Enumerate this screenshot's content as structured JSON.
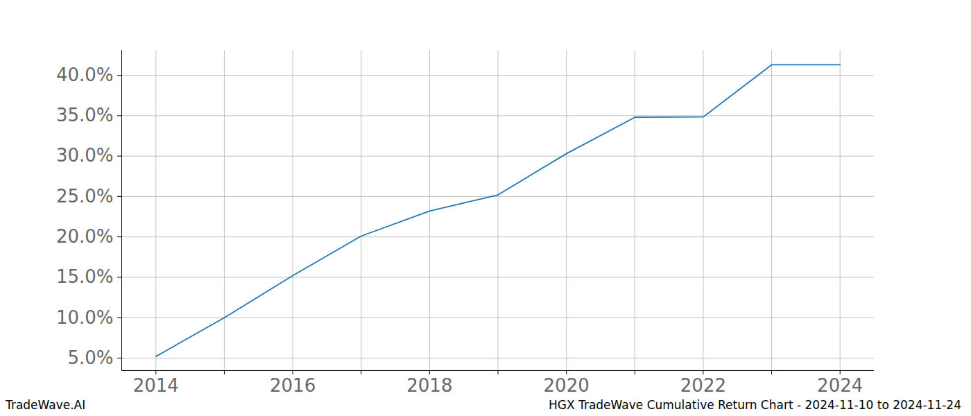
{
  "chart_data": {
    "type": "line",
    "watermark": "TradeWave.AI",
    "caption": "HGX TradeWave Cumulative Return Chart - 2024-11-10 to 2024-11-24",
    "x": [
      2014,
      2015,
      2016,
      2017,
      2018,
      2019,
      2020,
      2021,
      2022,
      2023,
      2024
    ],
    "values": [
      5.2,
      10.0,
      15.2,
      20.1,
      23.2,
      25.2,
      30.3,
      34.8,
      34.85,
      41.3,
      41.3
    ],
    "color": "#1f77b4",
    "xlim": [
      2013.5,
      2024.5
    ],
    "xticks": [
      2014,
      {
        "value": 2015,
        "label": null
      },
      2016,
      {
        "value": 2017,
        "label": null
      },
      2018,
      {
        "value": 2019,
        "label": null
      },
      2020,
      {
        "value": 2021,
        "label": null
      },
      2022,
      {
        "value": 2023,
        "label": null
      },
      2024
    ],
    "ylim": [
      3.45,
      43.1
    ],
    "yticks": [
      {
        "value": 5,
        "label": "5.0%"
      },
      {
        "value": 10,
        "label": "10.0%"
      },
      {
        "value": 15,
        "label": "15.0%"
      },
      {
        "value": 20,
        "label": "20.0%"
      },
      {
        "value": 25,
        "label": "25.0%"
      },
      {
        "value": 30,
        "label": "30.0%"
      },
      {
        "value": 35,
        "label": "35.0%"
      },
      {
        "value": 40,
        "label": "40.0%"
      }
    ],
    "grid": true
  }
}
